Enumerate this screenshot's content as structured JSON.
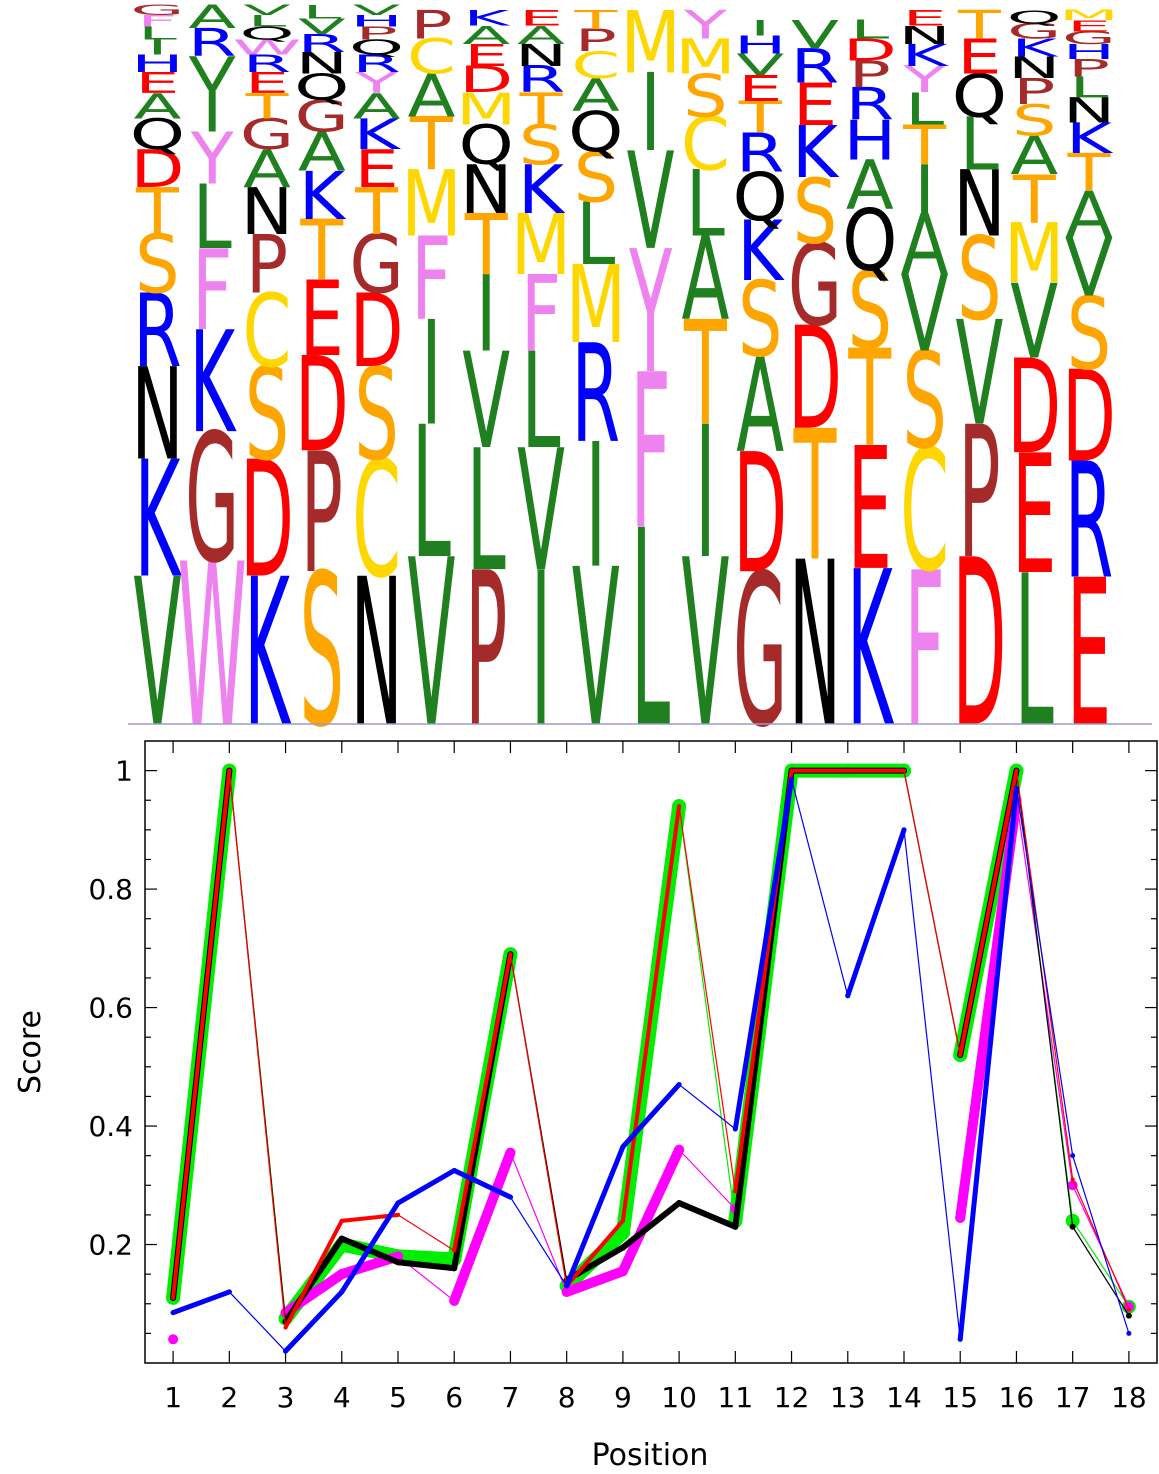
{
  "sequence_logo": {
    "letter_colors": {
      "V": "#208020",
      "I": "#208020",
      "L": "#208020",
      "A": "#208020",
      "G": "#a52a2a",
      "P": "#a52a2a",
      "W": "#ee82ee",
      "F": "#ee82ee",
      "Y": "#ee82ee",
      "M": "#ffd700",
      "C": "#ffd700",
      "S": "#ffa500",
      "T": "#ffa500",
      "K": "#0000ff",
      "R": "#0000ff",
      "H": "#0000ff",
      "D": "#ff0000",
      "E": "#ff0000",
      "N": "#000000",
      "Q": "#000000"
    },
    "columns": [
      [
        "V",
        "K",
        "N",
        "R",
        "S",
        "T",
        "D",
        "Q",
        "A",
        "E",
        "H",
        "I",
        "L",
        "F",
        "G"
      ],
      [
        "W",
        "G",
        "K",
        "F",
        "L",
        "Y",
        "I",
        "V",
        "R",
        "A"
      ],
      [
        "K",
        "D",
        "S",
        "C",
        "P",
        "N",
        "A",
        "G",
        "T",
        "E",
        "R",
        "W",
        "Q",
        "L",
        "V"
      ],
      [
        "S",
        "P",
        "D",
        "E",
        "T",
        "K",
        "A",
        "G",
        "Q",
        "N",
        "R",
        "V",
        "L"
      ],
      [
        "N",
        "C",
        "S",
        "D",
        "G",
        "T",
        "E",
        "K",
        "A",
        "Y",
        "R",
        "Q",
        "P",
        "H",
        "V"
      ],
      [
        "V",
        "L",
        "I",
        "F",
        "M",
        "T",
        "A",
        "C",
        "P"
      ],
      [
        "P",
        "L",
        "V",
        "I",
        "T",
        "N",
        "Q",
        "M",
        "D",
        "E",
        "A",
        "K"
      ],
      [
        "I",
        "V",
        "L",
        "F",
        "M",
        "K",
        "S",
        "T",
        "R",
        "N",
        "A",
        "E"
      ],
      [
        "V",
        "I",
        "R",
        "M",
        "L",
        "S",
        "Q",
        "A",
        "C",
        "P",
        "T"
      ],
      [
        "L",
        "F",
        "Y",
        "V",
        "I",
        "M"
      ],
      [
        "V",
        "I",
        "T",
        "A",
        "L",
        "C",
        "S",
        "M",
        "Y"
      ],
      [
        "G",
        "D",
        "A",
        "S",
        "K",
        "Q",
        "R",
        "T",
        "E",
        "V",
        "H",
        "I"
      ],
      [
        "N",
        "T",
        "D",
        "G",
        "S",
        "K",
        "E",
        "R",
        "V"
      ],
      [
        "K",
        "E",
        "T",
        "S",
        "Q",
        "A",
        "H",
        "R",
        "P",
        "D",
        "L"
      ],
      [
        "F",
        "C",
        "S",
        "V",
        "A",
        "I",
        "T",
        "L",
        "Y",
        "K",
        "N",
        "E"
      ],
      [
        "D",
        "P",
        "V",
        "S",
        "N",
        "L",
        "Q",
        "E",
        "T"
      ],
      [
        "L",
        "E",
        "D",
        "V",
        "M",
        "T",
        "A",
        "S",
        "P",
        "N",
        "K",
        "G",
        "Q"
      ],
      [
        "E",
        "R",
        "D",
        "S",
        "V",
        "A",
        "T",
        "K",
        "N",
        "L",
        "P",
        "H",
        "G",
        "E",
        "M"
      ]
    ]
  },
  "chart_data": {
    "type": "line",
    "xlabel": "Position",
    "ylabel": "Score",
    "x": [
      1,
      2,
      3,
      4,
      5,
      6,
      7,
      8,
      9,
      10,
      11,
      12,
      13,
      14,
      15,
      16,
      17,
      18
    ],
    "xlim": [
      0.5,
      18.5
    ],
    "ylim": [
      0,
      1.05
    ],
    "y_ticks": [
      0.2,
      0.4,
      0.6,
      0.8,
      1
    ],
    "y_tick_labels": [
      "0.2",
      "0.4",
      "0.6",
      "0.8",
      "1"
    ],
    "x_tick_labels": [
      "1",
      "2",
      "3",
      "4",
      "5",
      "6",
      "7",
      "8",
      "9",
      "10",
      "11",
      "12",
      "13",
      "14",
      "15",
      "16",
      "17",
      "18"
    ],
    "series": [
      {
        "color": "#00ee00",
        "values": [
          0.11,
          1.0,
          0.075,
          0.2,
          0.18,
          0.175,
          0.69,
          0.13,
          0.22,
          0.94,
          0.24,
          1.0,
          1.0,
          1.0,
          0.52,
          1.0,
          0.24,
          0.095
        ]
      },
      {
        "color": "#ff00ff",
        "values": [
          0.04,
          null,
          0.085,
          0.15,
          0.18,
          0.105,
          0.355,
          0.12,
          0.155,
          0.36,
          0.26,
          null,
          null,
          null,
          0.245,
          0.95,
          0.3,
          0.095
        ]
      },
      {
        "color": "#000000",
        "values": [
          0.11,
          1.0,
          0.07,
          0.21,
          0.17,
          0.16,
          0.69,
          0.14,
          0.195,
          0.27,
          0.23,
          1.0,
          1.0,
          1.0,
          0.52,
          1.0,
          0.23,
          0.08
        ]
      },
      {
        "color": "#ff0000",
        "values": [
          0.11,
          1.0,
          0.06,
          0.24,
          0.25,
          0.19,
          0.69,
          0.13,
          0.24,
          0.94,
          0.29,
          1.0,
          1.0,
          1.0,
          0.52,
          1.0,
          0.31,
          0.09
        ]
      },
      {
        "color": "#0000ff",
        "values": [
          0.085,
          0.12,
          0.02,
          0.12,
          0.27,
          0.325,
          0.28,
          0.13,
          0.365,
          0.47,
          0.395,
          0.985,
          0.62,
          0.9,
          0.04,
          0.97,
          0.35,
          0.05
        ]
      }
    ]
  }
}
